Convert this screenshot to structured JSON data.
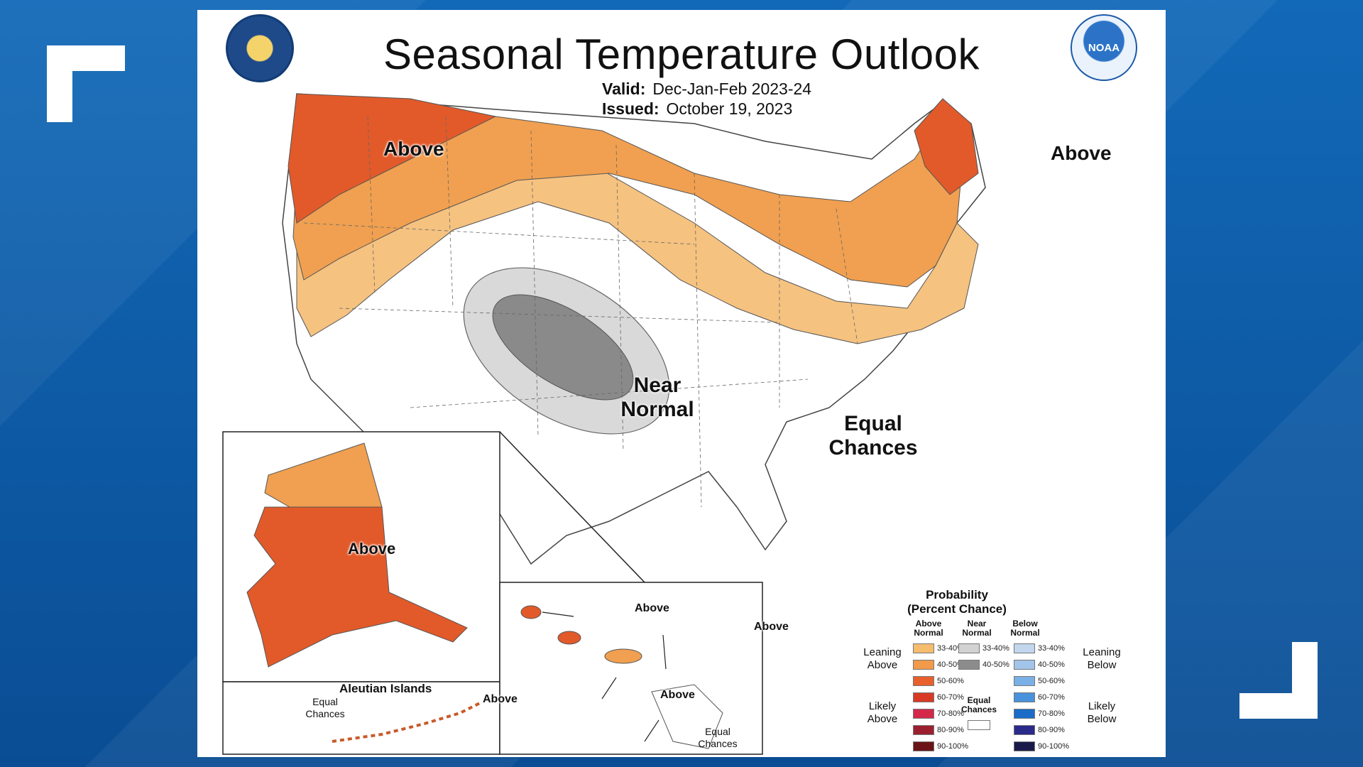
{
  "title": "Seasonal Temperature Outlook",
  "valid_label": "Valid:",
  "valid_value": "Dec-Jan-Feb 2023-24",
  "issued_label": "Issued:",
  "issued_value": "October 19, 2023",
  "noaa_text": "NOAA",
  "regions": {
    "pacific_nw": "Above",
    "new_england": "Above",
    "near_normal_1": "Near",
    "near_normal_2": "Normal",
    "equal_1": "Equal",
    "equal_2": "Chances",
    "alaska": "Above",
    "aleutian_title": "Aleutian Islands",
    "aleutian_equal_1": "Equal",
    "aleutian_equal_2": "Chances",
    "aleutian_above": "Above",
    "hawaii_above_1": "Above",
    "hawaii_above_2": "Above",
    "hawaii_above_3": "Above",
    "hawaii_equal_1": "Equal",
    "hawaii_equal_2": "Chances"
  },
  "legend": {
    "title_1": "Probability",
    "title_2": "(Percent Chance)",
    "above_head_1": "Above",
    "above_head_2": "Normal",
    "near_head_1": "Near",
    "near_head_2": "Normal",
    "below_head_1": "Below",
    "below_head_2": "Normal",
    "leaning_above_1": "Leaning",
    "leaning_above_2": "Above",
    "likely_above_1": "Likely",
    "likely_above_2": "Above",
    "leaning_below_1": "Leaning",
    "leaning_below_2": "Below",
    "likely_below_1": "Likely",
    "likely_below_2": "Below",
    "equal_1": "Equal",
    "equal_2": "Chances",
    "above": [
      {
        "label": "33-40%",
        "color": "#f5bd6e"
      },
      {
        "label": "40-50%",
        "color": "#f19a4a"
      },
      {
        "label": "50-60%",
        "color": "#e8602c"
      },
      {
        "label": "60-70%",
        "color": "#d83a25"
      },
      {
        "label": "70-80%",
        "color": "#d4284a"
      },
      {
        "label": "80-90%",
        "color": "#9a2030"
      },
      {
        "label": "90-100%",
        "color": "#6a1418"
      }
    ],
    "near": [
      {
        "label": "33-40%",
        "color": "#d2d2d2"
      },
      {
        "label": "40-50%",
        "color": "#8c8c8c"
      }
    ],
    "below": [
      {
        "label": "33-40%",
        "color": "#c2d6ee"
      },
      {
        "label": "40-50%",
        "color": "#a2c4ea"
      },
      {
        "label": "50-60%",
        "color": "#7ab0e6"
      },
      {
        "label": "60-70%",
        "color": "#4a92dc"
      },
      {
        "label": "70-80%",
        "color": "#1a6cc8"
      },
      {
        "label": "80-90%",
        "color": "#2a2a8a"
      },
      {
        "label": "90-100%",
        "color": "#1a1a4a"
      }
    ]
  },
  "colors": {
    "above_50_60": "#e25a2a",
    "above_40_50": "#f0a050",
    "above_33_40": "#f5c280",
    "near_33_40": "#d9d9d9",
    "near_40_50": "#8a8a8a",
    "background_blue": "#0d5ba8"
  }
}
